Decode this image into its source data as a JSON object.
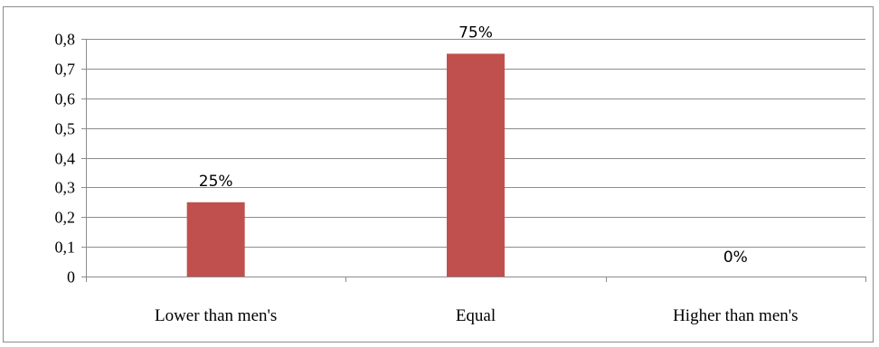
{
  "chart_data": {
    "type": "bar",
    "categories": [
      "Lower than men's",
      "Equal",
      "Higher than men's"
    ],
    "values": [
      0.25,
      0.75,
      0
    ],
    "data_labels": [
      "25%",
      "75%",
      "0%"
    ],
    "y_ticks": [
      "0",
      "0,1",
      "0,2",
      "0,3",
      "0,4",
      "0,5",
      "0,6",
      "0,7",
      "0,8"
    ],
    "ylim": [
      0,
      0.8
    ],
    "grid": true,
    "legend": "none",
    "colors": {
      "bar": "#c0504d"
    }
  }
}
